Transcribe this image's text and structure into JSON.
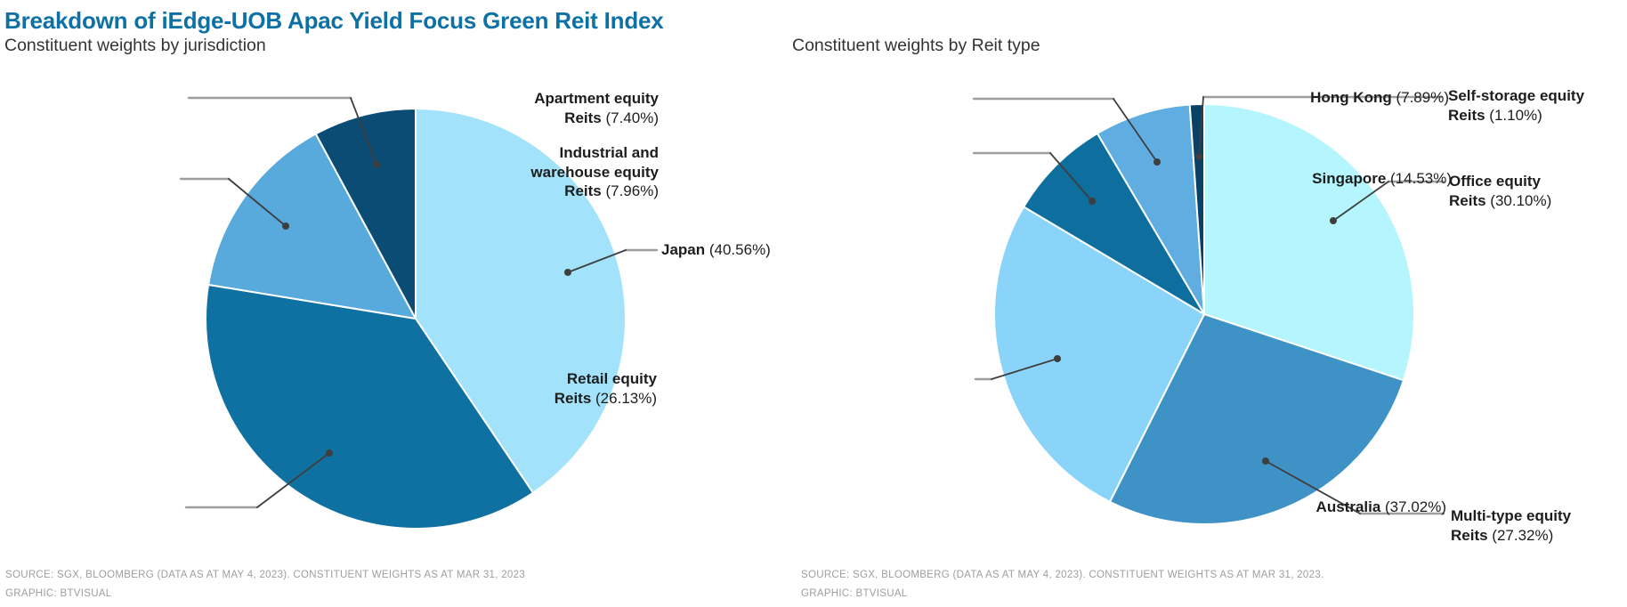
{
  "header": {
    "title": "Breakdown of iEdge-UOB Apac Yield Focus Green Reit Index"
  },
  "colors": {
    "title_blue": "#0e71a6",
    "label_text": "#1d1d1d",
    "leader_gray": "#9e9e9e",
    "leader_dark": "#3e3e3e",
    "source_gray": "#9e9e9e",
    "slice_border": "#ffffff"
  },
  "sources": {
    "left_line1": "SOURCE: SGX, BLOOMBERG (DATA AS AT MAY 4, 2023). CONSTITUENT WEIGHTS AS AT MAR 31, 2023",
    "left_line2": "GRAPHIC: BTVISUAL",
    "right_line1": "SOURCE: SGX, BLOOMBERG (DATA AS AT MAY 4, 2023). CONSTITUENT WEIGHTS AS AT MAR 31, 2023.",
    "right_line2": "GRAPHIC: BTVISUAL"
  },
  "chart_data": [
    {
      "type": "pie",
      "title": "Constituent weights by jurisdiction",
      "start_angle_deg": 0,
      "direction": "clockwise",
      "legend_position": "leader-line labels",
      "categories": [
        "Japan",
        "Australia",
        "Singapore",
        "Hong Kong"
      ],
      "values": [
        40.56,
        37.02,
        14.53,
        7.89
      ],
      "slices": [
        {
          "name": "Japan",
          "pct": "(40.56%)",
          "value": 40.56,
          "color": "#a2e3fb",
          "label": "Japan (40.56%)"
        },
        {
          "name": "Australia",
          "pct": "(37.02%)",
          "value": 37.02,
          "color": "#0f70a2",
          "label": "Australia (37.02%)"
        },
        {
          "name": "Singapore",
          "pct": "(14.53%)",
          "value": 14.53,
          "color": "#58aadd",
          "label": "Singapore (14.53%)"
        },
        {
          "name": "Hong Kong",
          "pct": "(7.89%)",
          "value": 7.89,
          "color": "#0b4c75",
          "label": "Hong Kong (7.89%)"
        }
      ]
    },
    {
      "type": "pie",
      "title": "Constituent weights by Reit type",
      "start_angle_deg": 0,
      "direction": "clockwise",
      "legend_position": "leader-line labels",
      "categories": [
        "Office equity Reits",
        "Multi-type equity Reits",
        "Retail equity Reits",
        "Industrial and warehouse equity Reits",
        "Apartment equity Reits",
        "Self-storage equity Reits"
      ],
      "values": [
        30.1,
        27.32,
        26.13,
        7.96,
        7.4,
        1.1
      ],
      "slices": [
        {
          "name": "Office equity Reits",
          "pct": "(30.10%)",
          "value": 30.1,
          "color": "#b5f5fd",
          "label": "Office equity Reits (30.10%)"
        },
        {
          "name": "Multi-type equity Reits",
          "pct": "(27.32%)",
          "value": 27.32,
          "color": "#3e92c6",
          "label": "Multi-type equity Reits (27.32%)"
        },
        {
          "name": "Retail equity Reits",
          "pct": "(26.13%)",
          "value": 26.13,
          "color": "#8bd4f9",
          "label": "Retail equity Reits (26.13%)"
        },
        {
          "name": "Industrial and warehouse equity Reits",
          "pct": "(7.96%)",
          "value": 7.96,
          "color": "#0e6f9f",
          "label": "Industrial and warehouse equity Reits (7.96%)"
        },
        {
          "name": "Apartment equity Reits",
          "pct": "(7.40%)",
          "value": 7.4,
          "color": "#60aee1",
          "label": "Apartment equity Reits (7.40%)"
        },
        {
          "name": "Self-storage equity Reits",
          "pct": "(1.10%)",
          "value": 1.1,
          "color": "#0a4166",
          "label": "Self-storage equity Reits (1.10%)"
        }
      ]
    }
  ]
}
